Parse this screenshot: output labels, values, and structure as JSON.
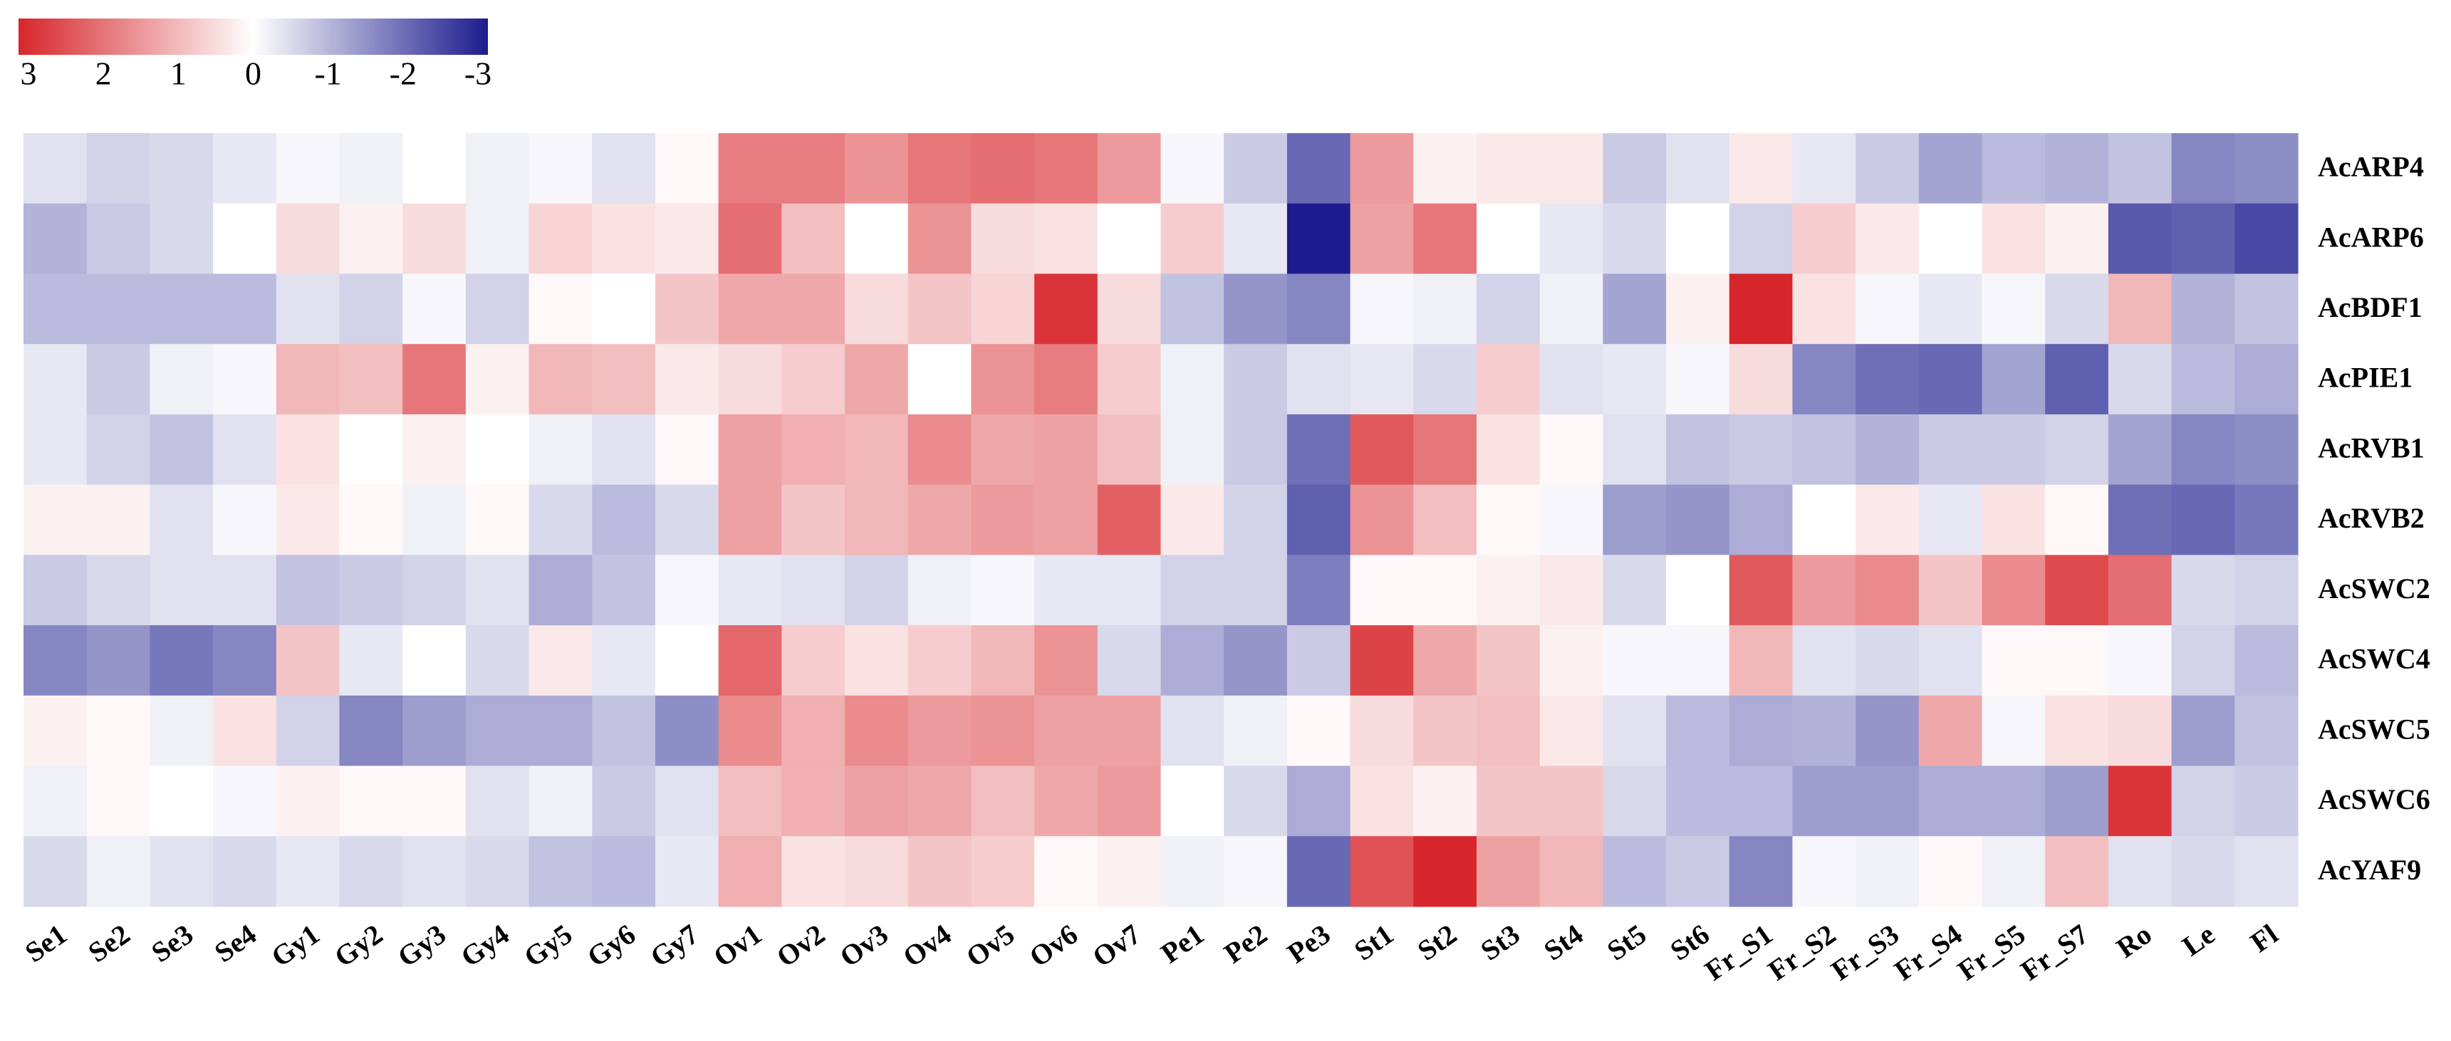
{
  "chart_data": {
    "type": "heatmap",
    "categories": [
      "Se1",
      "Se2",
      "Se3",
      "Se4",
      "Gy1",
      "Gy2",
      "Gy3",
      "Gy4",
      "Gy5",
      "Gy6",
      "Gy7",
      "Ov1",
      "Ov2",
      "Ov3",
      "Ov4",
      "Ov5",
      "Ov6",
      "Ov7",
      "Pe1",
      "Pe2",
      "Pe3",
      "St1",
      "St2",
      "St3",
      "St4",
      "St5",
      "St6",
      "Fr_S1",
      "Fr_S2",
      "Fr_S3",
      "Fr_S4",
      "Fr_S5",
      "Fr_S7",
      "Ro",
      "Le",
      "Fl"
    ],
    "rows": [
      "AcARP4",
      "AcARP6",
      "AcBDF1",
      "AcPIE1",
      "AcRVB1",
      "AcRVB2",
      "AcSWC2",
      "AcSWC4",
      "AcSWC5",
      "AcSWC6",
      "AcYAF9"
    ],
    "values": [
      [
        -0.4,
        -0.6,
        -0.5,
        -0.3,
        -0.1,
        -0.2,
        0,
        -0.2,
        -0.1,
        -0.4,
        0.1,
        1.8,
        1.8,
        1.5,
        1.9,
        2.0,
        1.9,
        1.4,
        -0.1,
        -0.7,
        -2.0,
        1.4,
        0.2,
        0.3,
        0.3,
        -0.7,
        -0.4,
        0.3,
        -0.3,
        -0.7,
        -1.2,
        -0.9,
        -1.0,
        -0.8,
        -1.6,
        -1.5
      ],
      [
        -1.0,
        -0.7,
        -0.5,
        0,
        0.5,
        0.2,
        0.5,
        -0.2,
        0.6,
        0.4,
        0.3,
        2.0,
        0.9,
        0,
        1.5,
        0.5,
        0.4,
        0,
        0.7,
        -0.3,
        -3.0,
        1.3,
        1.9,
        0,
        -0.3,
        -0.5,
        0,
        -0.6,
        0.7,
        0.3,
        0,
        0.4,
        0.2,
        -2.2,
        -2.1,
        -2.4
      ],
      [
        -0.9,
        -0.9,
        -0.9,
        -0.9,
        -0.4,
        -0.6,
        -0.1,
        -0.6,
        0.1,
        0,
        0.8,
        1.2,
        1.2,
        0.5,
        0.8,
        0.6,
        2.8,
        0.5,
        -0.8,
        -1.4,
        -1.6,
        -0.1,
        -0.2,
        -0.6,
        -0.2,
        -1.2,
        0.2,
        3.0,
        0.4,
        -0.1,
        -0.3,
        -0.1,
        -0.5,
        1.0,
        -1.0,
        -0.8
      ],
      [
        -0.3,
        -0.7,
        -0.2,
        -0.1,
        1.0,
        0.9,
        1.9,
        0.2,
        1.0,
        0.9,
        0.3,
        0.5,
        0.7,
        1.2,
        0,
        1.5,
        1.8,
        0.7,
        -0.2,
        -0.7,
        -0.4,
        -0.3,
        -0.5,
        0.7,
        -0.4,
        -0.3,
        -0.1,
        0.5,
        -1.6,
        -1.9,
        -2.0,
        -1.2,
        -2.1,
        -0.5,
        -0.9,
        -1.1
      ],
      [
        -0.3,
        -0.6,
        -0.8,
        -0.4,
        0.4,
        0,
        0.2,
        0,
        -0.2,
        -0.4,
        0.1,
        1.3,
        1.1,
        1.0,
        1.6,
        1.2,
        1.3,
        0.9,
        -0.2,
        -0.7,
        -1.9,
        2.3,
        1.9,
        0.4,
        0.1,
        -0.4,
        -0.8,
        -0.7,
        -0.8,
        -1.0,
        -0.7,
        -0.7,
        -0.6,
        -1.2,
        -1.6,
        -1.5
      ],
      [
        0.2,
        0.2,
        -0.4,
        -0.1,
        0.3,
        0.1,
        -0.2,
        0.1,
        -0.5,
        -0.9,
        -0.5,
        1.3,
        0.8,
        1.0,
        1.2,
        1.4,
        1.3,
        2.2,
        0.3,
        -0.6,
        -2.1,
        1.5,
        0.9,
        0.1,
        -0.1,
        -1.3,
        -1.4,
        -1.1,
        0,
        0.3,
        -0.3,
        0.4,
        0.1,
        -1.9,
        -2.0,
        -1.8
      ],
      [
        -0.7,
        -0.5,
        -0.4,
        -0.4,
        -0.8,
        -0.7,
        -0.6,
        -0.4,
        -1.1,
        -0.8,
        -0.1,
        -0.3,
        -0.4,
        -0.6,
        -0.2,
        -0.1,
        -0.3,
        -0.3,
        -0.6,
        -0.6,
        -1.7,
        0.1,
        0.1,
        0.2,
        0.3,
        -0.5,
        0,
        2.3,
        1.4,
        1.6,
        0.8,
        1.6,
        2.5,
        2.0,
        -0.5,
        -0.6
      ],
      [
        -1.6,
        -1.4,
        -1.8,
        -1.6,
        0.8,
        -0.3,
        0,
        -0.5,
        0.3,
        -0.3,
        0,
        2.1,
        0.7,
        0.4,
        0.7,
        1.0,
        1.5,
        -0.5,
        -1.1,
        -1.4,
        -0.7,
        2.6,
        1.2,
        0.8,
        0.2,
        -0.1,
        -0.1,
        1.0,
        -0.4,
        -0.5,
        -0.4,
        0.1,
        0.1,
        -0.1,
        -0.6,
        -0.9
      ],
      [
        0.2,
        0.1,
        -0.2,
        0.4,
        -0.6,
        -1.6,
        -1.3,
        -1.1,
        -1.1,
        -0.8,
        -1.5,
        1.6,
        1.1,
        1.6,
        1.4,
        1.5,
        1.3,
        1.3,
        -0.4,
        -0.2,
        0.1,
        0.5,
        0.8,
        0.9,
        0.3,
        -0.4,
        -0.9,
        -1.1,
        -1.0,
        -1.4,
        1.2,
        -0.1,
        0.4,
        0.5,
        -1.3,
        -0.8
      ],
      [
        -0.2,
        0.1,
        0,
        -0.1,
        0.2,
        0.1,
        0.1,
        -0.4,
        -0.2,
        -0.7,
        -0.4,
        0.9,
        1.1,
        1.3,
        1.2,
        0.9,
        1.2,
        1.4,
        0,
        -0.5,
        -1.1,
        0.4,
        0.2,
        0.8,
        0.8,
        -0.5,
        -0.9,
        -0.9,
        -1.3,
        -1.3,
        -1.1,
        -1.1,
        -1.3,
        2.8,
        -0.6,
        -0.7
      ],
      [
        -0.5,
        -0.2,
        -0.4,
        -0.5,
        -0.3,
        -0.5,
        -0.4,
        -0.5,
        -0.8,
        -0.9,
        -0.3,
        1.1,
        0.4,
        0.5,
        0.8,
        0.7,
        0.1,
        0.2,
        -0.2,
        -0.1,
        -2.0,
        2.4,
        3.0,
        1.3,
        1.0,
        -0.9,
        -0.7,
        -1.6,
        -0.1,
        -0.2,
        0.1,
        -0.2,
        0.9,
        -0.4,
        -0.5,
        -0.4
      ]
    ],
    "clim": [
      3,
      -3
    ],
    "cticks": [
      3,
      2,
      1,
      0,
      -1,
      -2,
      -3
    ],
    "colormap": [
      "#d7262b",
      "#ffffff",
      "#1c1c8e"
    ]
  }
}
